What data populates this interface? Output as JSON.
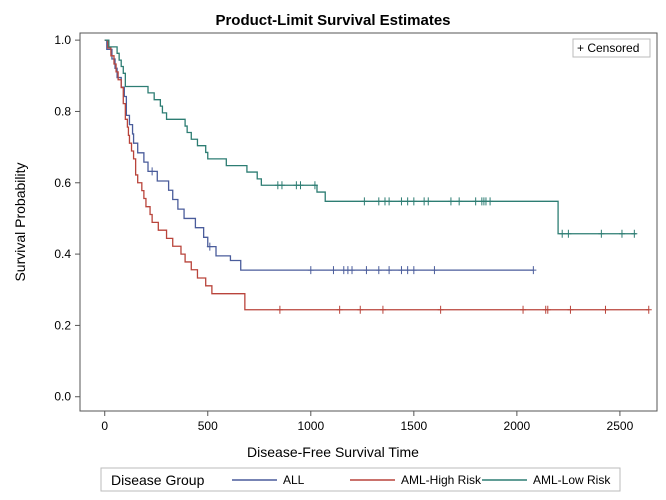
{
  "chart_data": {
    "type": "line",
    "step": true,
    "title": "Product-Limit Survival Estimates",
    "xlabel": "Disease-Free Survival Time",
    "ylabel": "Survival Probability",
    "xlim": [
      -120,
      2680
    ],
    "ylim": [
      -0.04,
      1.02
    ],
    "xticks": [
      0,
      500,
      1000,
      1500,
      2000,
      2500
    ],
    "xtick_labels": [
      "0",
      "500",
      "1000",
      "1500",
      "2000",
      "2500"
    ],
    "yticks": [
      0.0,
      0.2,
      0.4,
      0.6,
      0.8,
      1.0
    ],
    "ytick_labels": [
      "0.0",
      "0.2",
      "0.4",
      "0.6",
      "0.8",
      "1.0"
    ],
    "grid": false,
    "censor_legend": "+ Censored",
    "legend": {
      "title": "Disease Group",
      "placement": "bottom"
    },
    "series": [
      {
        "name": "ALL",
        "color": "#4a5c9b",
        "steps": [
          [
            0,
            1.0
          ],
          [
            10,
            0.974
          ],
          [
            35,
            0.947
          ],
          [
            50,
            0.921
          ],
          [
            60,
            0.895
          ],
          [
            80,
            0.868
          ],
          [
            95,
            0.842
          ],
          [
            105,
            0.789
          ],
          [
            120,
            0.763
          ],
          [
            135,
            0.737
          ],
          [
            140,
            0.711
          ],
          [
            160,
            0.684
          ],
          [
            190,
            0.658
          ],
          [
            210,
            0.632
          ],
          [
            255,
            0.605
          ],
          [
            310,
            0.579
          ],
          [
            330,
            0.553
          ],
          [
            355,
            0.526
          ],
          [
            385,
            0.5
          ],
          [
            440,
            0.474
          ],
          [
            480,
            0.447
          ],
          [
            500,
            0.421
          ],
          [
            540,
            0.395
          ],
          [
            610,
            0.382
          ],
          [
            660,
            0.355
          ]
        ],
        "end": 2080,
        "censored": [
          [
            230,
            0.632
          ],
          [
            510,
            0.421
          ],
          [
            1000,
            0.355
          ],
          [
            1110,
            0.355
          ],
          [
            1160,
            0.355
          ],
          [
            1180,
            0.355
          ],
          [
            1200,
            0.355
          ],
          [
            1270,
            0.355
          ],
          [
            1330,
            0.355
          ],
          [
            1380,
            0.355
          ],
          [
            1440,
            0.355
          ],
          [
            1470,
            0.355
          ],
          [
            1500,
            0.355
          ],
          [
            1600,
            0.355
          ],
          [
            2080,
            0.355
          ]
        ]
      },
      {
        "name": "AML-High Risk",
        "color": "#b9443b",
        "steps": [
          [
            0,
            1.0
          ],
          [
            15,
            0.978
          ],
          [
            30,
            0.956
          ],
          [
            45,
            0.933
          ],
          [
            55,
            0.911
          ],
          [
            65,
            0.889
          ],
          [
            80,
            0.867
          ],
          [
            90,
            0.822
          ],
          [
            100,
            0.778
          ],
          [
            110,
            0.756
          ],
          [
            115,
            0.733
          ],
          [
            120,
            0.711
          ],
          [
            130,
            0.689
          ],
          [
            140,
            0.667
          ],
          [
            150,
            0.622
          ],
          [
            160,
            0.6
          ],
          [
            180,
            0.578
          ],
          [
            190,
            0.556
          ],
          [
            200,
            0.533
          ],
          [
            220,
            0.511
          ],
          [
            230,
            0.489
          ],
          [
            260,
            0.467
          ],
          [
            300,
            0.444
          ],
          [
            330,
            0.422
          ],
          [
            370,
            0.4
          ],
          [
            390,
            0.378
          ],
          [
            420,
            0.356
          ],
          [
            450,
            0.333
          ],
          [
            490,
            0.311
          ],
          [
            520,
            0.289
          ],
          [
            680,
            0.244
          ]
        ],
        "end": 2640,
        "censored": [
          [
            850,
            0.244
          ],
          [
            1140,
            0.244
          ],
          [
            1240,
            0.244
          ],
          [
            1350,
            0.244
          ],
          [
            1630,
            0.244
          ],
          [
            2030,
            0.244
          ],
          [
            2140,
            0.244
          ],
          [
            2150,
            0.244
          ],
          [
            2260,
            0.244
          ],
          [
            2430,
            0.244
          ],
          [
            2640,
            0.244
          ]
        ]
      },
      {
        "name": "AML-Low Risk",
        "color": "#2d7d73",
        "steps": [
          [
            0,
            1.0
          ],
          [
            20,
            0.981
          ],
          [
            60,
            0.963
          ],
          [
            70,
            0.944
          ],
          [
            80,
            0.926
          ],
          [
            90,
            0.907
          ],
          [
            100,
            0.87
          ],
          [
            210,
            0.852
          ],
          [
            240,
            0.833
          ],
          [
            270,
            0.815
          ],
          [
            280,
            0.796
          ],
          [
            300,
            0.778
          ],
          [
            390,
            0.759
          ],
          [
            400,
            0.741
          ],
          [
            420,
            0.722
          ],
          [
            450,
            0.704
          ],
          [
            490,
            0.685
          ],
          [
            500,
            0.667
          ],
          [
            590,
            0.648
          ],
          [
            690,
            0.63
          ],
          [
            740,
            0.611
          ],
          [
            760,
            0.593
          ],
          [
            1030,
            0.574
          ],
          [
            1070,
            0.548
          ],
          [
            2200,
            0.457
          ]
        ],
        "end": 2580,
        "censored": [
          [
            840,
            0.593
          ],
          [
            860,
            0.593
          ],
          [
            930,
            0.593
          ],
          [
            950,
            0.593
          ],
          [
            1020,
            0.593
          ],
          [
            1260,
            0.548
          ],
          [
            1330,
            0.548
          ],
          [
            1360,
            0.548
          ],
          [
            1380,
            0.548
          ],
          [
            1440,
            0.548
          ],
          [
            1470,
            0.548
          ],
          [
            1500,
            0.548
          ],
          [
            1550,
            0.548
          ],
          [
            1570,
            0.548
          ],
          [
            1680,
            0.548
          ],
          [
            1720,
            0.548
          ],
          [
            1800,
            0.548
          ],
          [
            1830,
            0.548
          ],
          [
            1840,
            0.548
          ],
          [
            1850,
            0.548
          ],
          [
            1870,
            0.548
          ],
          [
            2220,
            0.457
          ],
          [
            2250,
            0.457
          ],
          [
            2410,
            0.457
          ],
          [
            2510,
            0.457
          ],
          [
            2570,
            0.457
          ]
        ]
      }
    ]
  }
}
